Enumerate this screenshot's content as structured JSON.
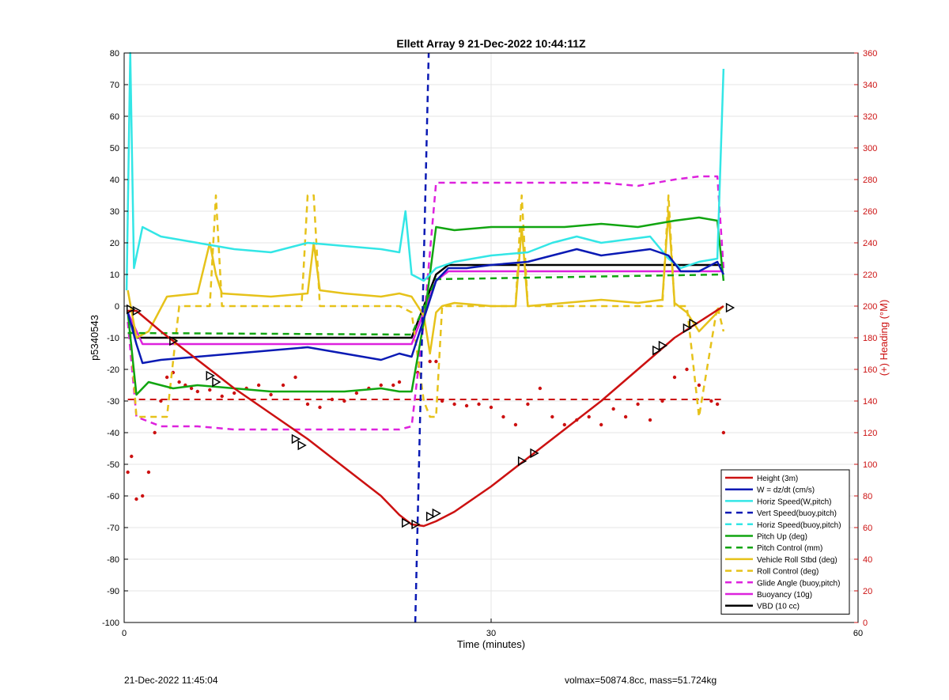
{
  "chart_data": {
    "type": "line",
    "title": "Ellett Array 9 21-Dec-2022 10:44:11Z",
    "xlabel": "Time (minutes)",
    "ylabel": "p5340543",
    "y2label": "(+) Heading (°M)",
    "xlim": [
      0,
      60
    ],
    "ylim": [
      -100,
      80
    ],
    "y2lim": [
      0,
      360
    ],
    "xticks": [
      0,
      30,
      60
    ],
    "yticks": [
      -100,
      -90,
      -80,
      -70,
      -60,
      -50,
      -40,
      -30,
      -20,
      -10,
      0,
      10,
      20,
      30,
      40,
      50,
      60,
      70,
      80
    ],
    "y2ticks": [
      0,
      20,
      40,
      60,
      80,
      100,
      120,
      140,
      160,
      180,
      200,
      220,
      240,
      260,
      280,
      300,
      320,
      340,
      360
    ],
    "grid": true,
    "legend_position": "bottom-right",
    "series": [
      {
        "name": "Height (3m)",
        "color": "#cc1111",
        "style": "solid",
        "x": [
          0.3,
          1.0,
          3.0,
          6.0,
          9.0,
          12.0,
          15.0,
          18.0,
          21.0,
          22.5,
          23.5,
          24.5,
          25.5,
          27.0,
          30.0,
          33.0,
          36.0,
          39.0,
          42.0,
          45.0,
          47.0,
          49.0
        ],
        "y": [
          -1.5,
          -1.5,
          -8,
          -17,
          -26,
          -34,
          -42,
          -51,
          -60,
          -66,
          -69,
          -69.5,
          -68,
          -65,
          -57,
          -48,
          -39,
          -30,
          -20,
          -10,
          -5,
          0
        ]
      },
      {
        "name": "W = dz/dt (cm/s)",
        "color": "#0a1ab4",
        "style": "solid",
        "x": [
          0.3,
          1.0,
          1.5,
          3.0,
          6.0,
          9.0,
          12.0,
          15.0,
          18.0,
          21.0,
          22.5,
          23.5,
          24.5,
          25.5,
          26.5,
          28.0,
          30.0,
          33.0,
          35.0,
          37.0,
          39.0,
          41.0,
          43.0,
          44.5,
          45.5,
          47.0,
          48.5,
          49.0
        ],
        "y": [
          -2,
          -12,
          -18,
          -17,
          -16,
          -15,
          -14,
          -13,
          -15,
          -17,
          -15,
          -16,
          -4,
          8,
          12,
          12,
          13,
          14,
          16,
          18,
          16,
          17,
          18,
          16,
          11,
          11,
          14,
          10
        ]
      },
      {
        "name": "Horiz Speed(W,pitch)",
        "color": "#33e6e6",
        "style": "solid",
        "x": [
          0.2,
          0.5,
          0.8,
          1.5,
          3.0,
          6.0,
          9.0,
          12.0,
          15.0,
          18.0,
          21.0,
          22.5,
          23.0,
          23.5,
          24.5,
          25.5,
          27.0,
          30.0,
          33.0,
          35.0,
          37.0,
          39.0,
          41.0,
          43.0,
          44.5,
          45.5,
          47.0,
          48.5,
          49.0
        ],
        "y": [
          5,
          80,
          12,
          25,
          22,
          20,
          18,
          17,
          20,
          19,
          18,
          17,
          30,
          10,
          8,
          12,
          14,
          16,
          17,
          20,
          22,
          20,
          21,
          22,
          15,
          12,
          14,
          15,
          75
        ]
      },
      {
        "name": "Vert Speed(buoy,pitch)",
        "color": "#0a1ab4",
        "style": "dashed",
        "x": [
          23.8,
          24.9
        ],
        "y": [
          -100,
          80
        ]
      },
      {
        "name": "Horiz Speed(buoy,pitch)",
        "color": "#33e6e6",
        "style": "dashed",
        "x": [],
        "y": []
      },
      {
        "name": "Pitch Up (deg)",
        "color": "#11a511",
        "style": "solid",
        "x": [
          0.3,
          1.0,
          2.0,
          4.0,
          6.0,
          9.0,
          12.0,
          15.0,
          18.0,
          21.0,
          22.5,
          23.5,
          24.5,
          25.5,
          27.0,
          30.0,
          33.0,
          36.0,
          39.0,
          42.0,
          45.0,
          47.0,
          48.5,
          49.0
        ],
        "y": [
          -2,
          -28,
          -24,
          -26,
          -25,
          -26,
          -27,
          -27,
          -27,
          -26,
          -27,
          -27,
          -5,
          25,
          24,
          25,
          25,
          25,
          26,
          25,
          27,
          28,
          27,
          8
        ]
      },
      {
        "name": "Pitch Control (mm)",
        "color": "#11a511",
        "style": "dashed",
        "x": [
          0.3,
          23.5,
          25.5,
          49.0
        ],
        "y": [
          -8.5,
          -9,
          8.5,
          10
        ]
      },
      {
        "name": "Vehicle Roll Stbd (deg)",
        "color": "#e6c21a",
        "style": "solid",
        "x": [
          0.3,
          1.0,
          2.0,
          3.5,
          6.0,
          7.0,
          7.5,
          8.0,
          12.0,
          15.0,
          15.5,
          16.0,
          18.0,
          21.0,
          22.5,
          23.5,
          24.5,
          25.0,
          25.5,
          26.0,
          27.0,
          30.0,
          32.0,
          32.5,
          33.0,
          36.0,
          39.0,
          42.0,
          44.0,
          44.5,
          45.0,
          46.0,
          47.0,
          48.5,
          49.0
        ],
        "y": [
          5,
          -10,
          -8,
          3,
          4,
          20,
          10,
          4,
          3,
          4,
          20,
          5,
          4,
          3,
          4,
          3,
          -3,
          -15,
          -2,
          0,
          1,
          0,
          0,
          25,
          0,
          1,
          2,
          1,
          2,
          30,
          1,
          -2,
          -8,
          -2,
          0
        ]
      },
      {
        "name": "Roll Control (deg)",
        "color": "#e6c21a",
        "style": "dashed",
        "x": [
          0.5,
          1.0,
          3.5,
          4.5,
          7.0,
          7.5,
          8.0,
          14.5,
          15.0,
          15.5,
          16.0,
          22.5,
          23.5,
          24.5,
          25.0,
          25.5,
          26.0,
          32.0,
          32.5,
          33.0,
          44.0,
          44.5,
          45.0,
          46.0,
          47.0,
          48.5,
          49.0
        ],
        "y": [
          -8,
          -35,
          -35,
          0,
          0,
          35,
          0,
          0,
          35,
          35,
          0,
          0,
          -2,
          -30,
          -35,
          -35,
          0,
          0,
          35,
          0,
          0,
          35,
          0,
          0,
          -35,
          0,
          -8
        ]
      },
      {
        "name": "Glide Angle (buoy,pitch)",
        "color": "#dd22dd",
        "style": "dashed",
        "x": [
          0.3,
          1.0,
          3.0,
          6.0,
          9.0,
          12.0,
          15.0,
          18.0,
          21.0,
          22.5,
          23.5,
          24.5,
          25.5,
          27.0,
          30.0,
          33.0,
          36.0,
          39.0,
          42.0,
          45.0,
          47.0,
          48.5,
          49.0
        ],
        "y": [
          -5,
          -35,
          -38,
          -38,
          -39,
          -39,
          -39,
          -39,
          -39,
          -39,
          -38,
          -5,
          39,
          39,
          39,
          39,
          39,
          39,
          38,
          40,
          41,
          41,
          12
        ]
      },
      {
        "name": "Buoyancy (10g)",
        "color": "#dd22dd",
        "style": "solid",
        "x": [
          0.3,
          1.5,
          22.5,
          23.5,
          25.5,
          26.5,
          49.0
        ],
        "y": [
          -2,
          -12,
          -12,
          -12,
          8,
          11,
          11
        ]
      },
      {
        "name": "VBD (10 cc)",
        "color": "#000000",
        "style": "solid",
        "x": [
          0.3,
          1.0,
          22.5,
          23.5,
          25.5,
          26.5,
          49.0
        ],
        "y": [
          -2,
          -10,
          -10,
          -10,
          10,
          13,
          13
        ]
      }
    ],
    "heading_reference": {
      "color": "#cc1111",
      "style": "dashed",
      "y2": 141,
      "x": [
        0.3,
        49.0
      ]
    },
    "heading_points": {
      "color": "#cc1111",
      "x": [
        0.3,
        0.6,
        1.0,
        1.5,
        2.0,
        2.5,
        3.0,
        3.5,
        4.0,
        4.5,
        5.0,
        5.5,
        6.0,
        7.0,
        8.0,
        9.0,
        10.0,
        11.0,
        12.0,
        13.0,
        14.0,
        15.0,
        16.0,
        17.0,
        18.0,
        19.0,
        20.0,
        21.0,
        22.0,
        22.5,
        24.0,
        25.0,
        25.5,
        26.0,
        27.0,
        28.0,
        29.0,
        30.0,
        31.0,
        32.0,
        33.0,
        34.0,
        35.0,
        36.0,
        37.0,
        38.0,
        39.0,
        40.0,
        41.0,
        42.0,
        43.0,
        44.0,
        45.0,
        46.0,
        47.0,
        48.0,
        48.5,
        49.0
      ],
      "y2": [
        95,
        105,
        78,
        80,
        95,
        120,
        140,
        155,
        158,
        152,
        150,
        148,
        146,
        147,
        143,
        145,
        148,
        150,
        144,
        150,
        155,
        138,
        136,
        141,
        140,
        145,
        148,
        150,
        150,
        152,
        158,
        165,
        165,
        140,
        138,
        137,
        138,
        136,
        130,
        125,
        138,
        148,
        130,
        125,
        128,
        130,
        125,
        135,
        130,
        138,
        128,
        140,
        155,
        160,
        150,
        140,
        138,
        120
      ]
    },
    "markers": {
      "type": "triangle",
      "x": [
        0.5,
        1.0,
        4.0,
        7.0,
        7.5,
        14.0,
        14.5,
        23.0,
        23.8,
        25.0,
        25.5,
        32.5,
        33.5,
        43.5,
        44.0,
        46.0,
        46.5,
        49.5
      ],
      "y": [
        -1,
        -1.5,
        -11,
        -22,
        -24,
        -42,
        -44,
        -68.5,
        -69,
        -66.5,
        -65.5,
        -49,
        -46.5,
        -14,
        -12.5,
        -7,
        -5.5,
        -0.5
      ]
    }
  },
  "footer": {
    "left_text": "21-Dec-2022 11:45:04",
    "right_text": "volmax=50874.8cc, mass=51.724kg"
  }
}
